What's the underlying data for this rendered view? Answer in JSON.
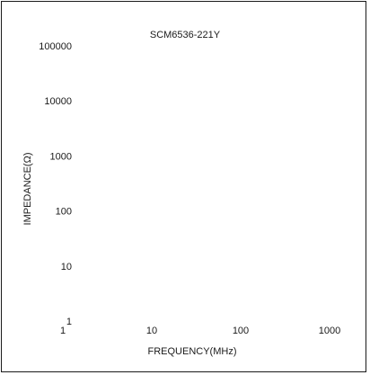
{
  "chart_data": {
    "type": "line",
    "title": "SCM6536-221Y",
    "xlabel": "FREQUENCY(MHz)",
    "ylabel": "IMPEDANCE(Ω)",
    "x_scale": "log",
    "y_scale": "log",
    "xlim": [
      1,
      1000
    ],
    "ylim": [
      1,
      100000
    ],
    "x_ticks": [
      1,
      10,
      100,
      1000
    ],
    "x_tick_labels": [
      "1",
      "10",
      "100",
      "1000"
    ],
    "y_ticks": [
      1,
      10,
      100,
      1000,
      10000,
      100000
    ],
    "y_tick_labels": [
      "1",
      "10",
      "100",
      "1000",
      "10000",
      "100000"
    ],
    "grid": false,
    "series": []
  }
}
